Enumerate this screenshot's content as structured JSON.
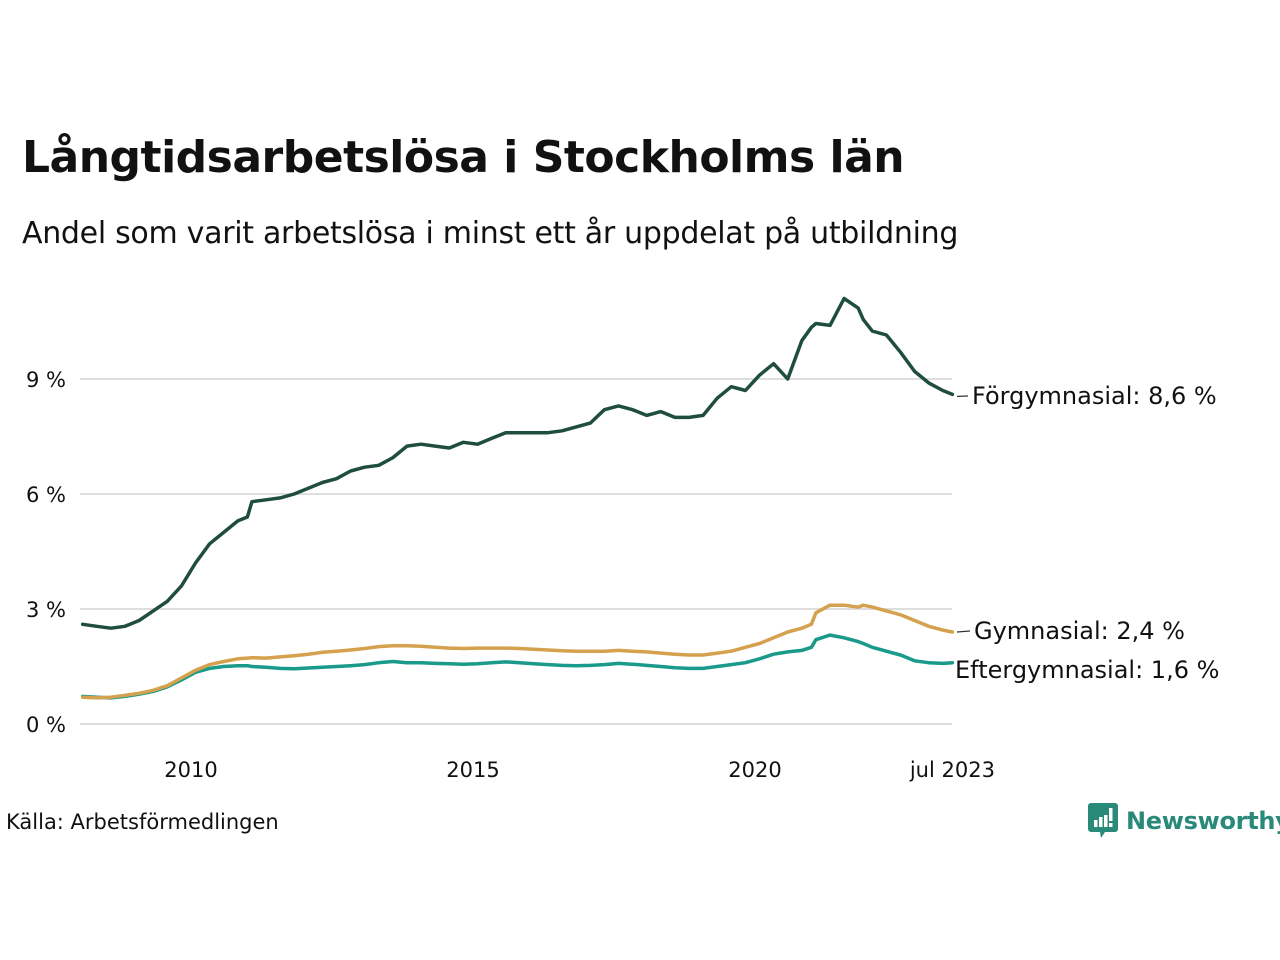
{
  "header": {
    "title": "Långtidsarbetslösa i Stockholms län",
    "subtitle": "Andel som varit arbetslösa i minst ett år uppdelat på utbildning"
  },
  "footer": {
    "source": "Källa: Arbetsförmedlingen",
    "brand": "Newsworthy",
    "brand_icon": "newsworthy-logo-icon",
    "brand_color": "#2a8a7a"
  },
  "chart_data": {
    "type": "line",
    "title": "Långtidsarbetslösa i Stockholms län",
    "subtitle": "Andel som varit arbetslösa i minst ett år uppdelat på utbildning",
    "xlabel": "",
    "ylabel": "",
    "ylim": [
      0,
      11.5
    ],
    "xlim": [
      2008.0,
      2023.6
    ],
    "grid": true,
    "y_ticks": [
      {
        "value": 0,
        "label": "0 %"
      },
      {
        "value": 3,
        "label": "3 %"
      },
      {
        "value": 6,
        "label": "6 %"
      },
      {
        "value": 9,
        "label": "9 %"
      }
    ],
    "x_ticks": [
      {
        "value": 2010.0,
        "label": "2010"
      },
      {
        "value": 2015.0,
        "label": "2015"
      },
      {
        "value": 2020.0,
        "label": "2020"
      },
      {
        "value": 2023.5,
        "label": "jul 2023"
      }
    ],
    "x": [
      2008.08,
      2008.33,
      2008.58,
      2008.83,
      2009.08,
      2009.33,
      2009.58,
      2009.83,
      2010.08,
      2010.33,
      2010.58,
      2010.83,
      2011.0,
      2011.08,
      2011.33,
      2011.58,
      2011.83,
      2012.08,
      2012.33,
      2012.58,
      2012.83,
      2013.08,
      2013.33,
      2013.58,
      2013.83,
      2014.08,
      2014.33,
      2014.58,
      2014.83,
      2015.08,
      2015.33,
      2015.58,
      2015.83,
      2016.08,
      2016.33,
      2016.58,
      2016.83,
      2017.08,
      2017.33,
      2017.58,
      2017.83,
      2018.08,
      2018.33,
      2018.58,
      2018.83,
      2019.08,
      2019.33,
      2019.58,
      2019.83,
      2020.08,
      2020.33,
      2020.58,
      2020.83,
      2021.0,
      2021.08,
      2021.33,
      2021.58,
      2021.83,
      2021.92,
      2022.08,
      2022.33,
      2022.58,
      2022.83,
      2023.08,
      2023.33,
      2023.5
    ],
    "series": [
      {
        "name": "Förgymnasial",
        "color": "#1f4e3d",
        "end_label": "Förgymnasial: 8,6 %",
        "values": [
          2.6,
          2.55,
          2.5,
          2.55,
          2.7,
          2.95,
          3.2,
          3.6,
          4.2,
          4.7,
          5.0,
          5.3,
          5.4,
          5.8,
          5.85,
          5.9,
          6.0,
          6.15,
          6.3,
          6.4,
          6.6,
          6.7,
          6.75,
          6.95,
          7.25,
          7.3,
          7.25,
          7.2,
          7.35,
          7.3,
          7.45,
          7.6,
          7.6,
          7.6,
          7.6,
          7.65,
          7.75,
          7.85,
          8.2,
          8.3,
          8.2,
          8.05,
          8.15,
          8.0,
          8.0,
          8.05,
          8.5,
          8.8,
          8.7,
          9.1,
          9.4,
          9.0,
          10.0,
          10.35,
          10.45,
          10.4,
          11.1,
          10.85,
          10.55,
          10.25,
          10.15,
          9.7,
          9.2,
          8.9,
          8.7,
          8.6
        ]
      },
      {
        "name": "Gymnasial",
        "color": "#d4a24e",
        "end_label": "Gymnasial: 2,4 %",
        "values": [
          0.7,
          0.68,
          0.7,
          0.75,
          0.8,
          0.88,
          1.0,
          1.2,
          1.4,
          1.55,
          1.63,
          1.7,
          1.72,
          1.73,
          1.72,
          1.75,
          1.78,
          1.82,
          1.87,
          1.9,
          1.93,
          1.97,
          2.02,
          2.04,
          2.04,
          2.03,
          2.0,
          1.98,
          1.97,
          1.98,
          1.98,
          1.98,
          1.97,
          1.95,
          1.93,
          1.91,
          1.9,
          1.9,
          1.9,
          1.92,
          1.9,
          1.88,
          1.85,
          1.82,
          1.8,
          1.8,
          1.85,
          1.9,
          2.0,
          2.1,
          2.25,
          2.4,
          2.5,
          2.6,
          2.9,
          3.1,
          3.1,
          3.05,
          3.1,
          3.05,
          2.95,
          2.85,
          2.7,
          2.55,
          2.45,
          2.4
        ]
      },
      {
        "name": "Eftergymnasial",
        "color": "#1a9a8a",
        "end_label": "Eftergymnasial: 1,6 %",
        "values": [
          0.72,
          0.7,
          0.68,
          0.72,
          0.78,
          0.85,
          0.97,
          1.15,
          1.35,
          1.45,
          1.5,
          1.52,
          1.52,
          1.5,
          1.48,
          1.45,
          1.44,
          1.46,
          1.48,
          1.5,
          1.52,
          1.55,
          1.6,
          1.63,
          1.6,
          1.6,
          1.58,
          1.57,
          1.56,
          1.57,
          1.6,
          1.62,
          1.6,
          1.57,
          1.55,
          1.53,
          1.52,
          1.53,
          1.55,
          1.58,
          1.56,
          1.53,
          1.5,
          1.47,
          1.45,
          1.45,
          1.5,
          1.55,
          1.6,
          1.7,
          1.82,
          1.88,
          1.92,
          2.0,
          2.2,
          2.32,
          2.25,
          2.15,
          2.1,
          2.0,
          1.9,
          1.8,
          1.65,
          1.6,
          1.58,
          1.6
        ]
      }
    ]
  }
}
